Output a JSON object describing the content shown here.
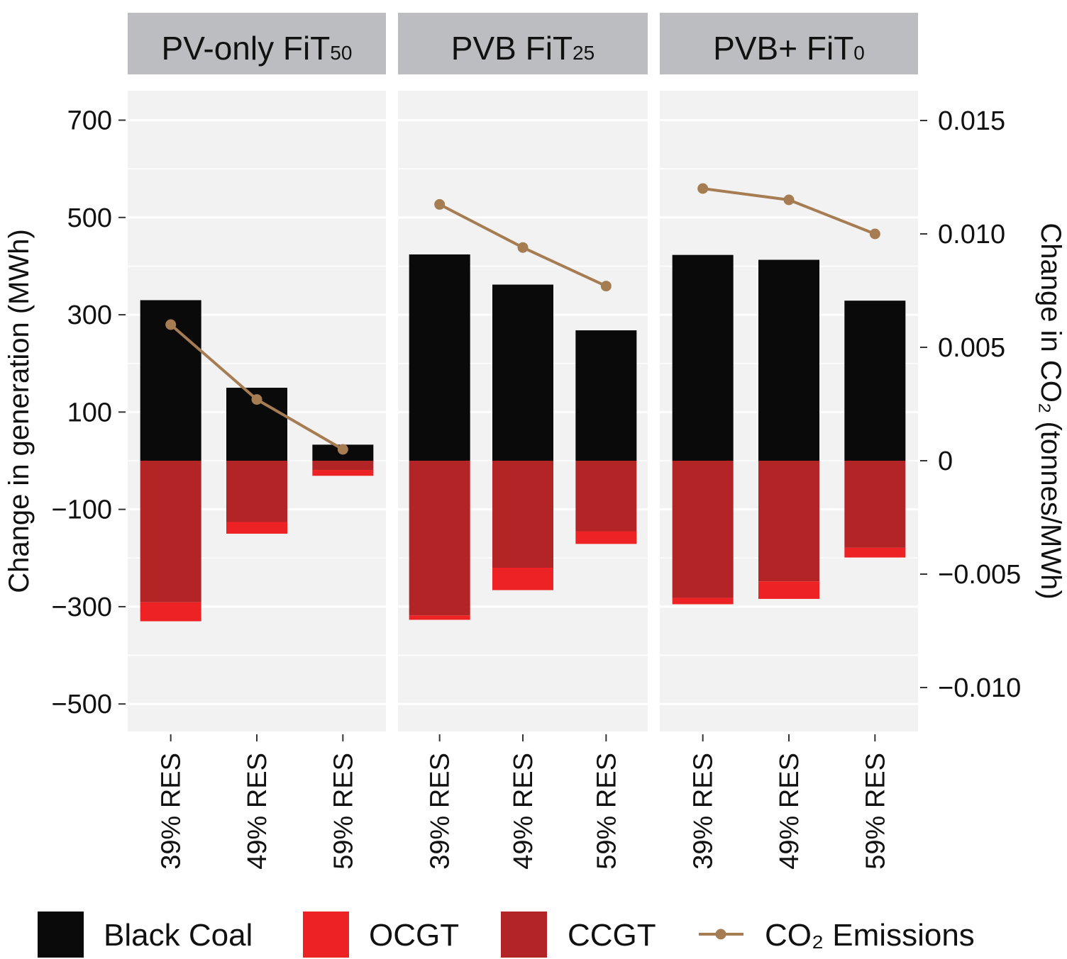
{
  "chart_data": {
    "type": "bar",
    "stacked": true,
    "facets": [
      {
        "title": "PV-only FiT",
        "subscript": "50"
      },
      {
        "title": "PVB FiT",
        "subscript": "25"
      },
      {
        "title": "PVB+ FiT",
        "subscript": "0"
      }
    ],
    "categories": [
      "39% RES",
      "49% RES",
      "59% RES"
    ],
    "series": [
      {
        "name": "Black Coal",
        "color": "#0a0a0a",
        "values": [
          [
            330,
            150,
            33
          ],
          [
            424,
            362,
            268
          ],
          [
            423,
            413,
            329
          ]
        ]
      },
      {
        "name": "OCGT",
        "color": "#ed2224",
        "values": [
          [
            -39,
            -24,
            -12
          ],
          [
            -9,
            -46,
            -26
          ],
          [
            -13,
            -36,
            -20
          ]
        ]
      },
      {
        "name": "CCGT",
        "color": "#b22426",
        "values": [
          [
            -291,
            -126,
            -19
          ],
          [
            -318,
            -220,
            -145
          ],
          [
            -282,
            -248,
            -179
          ]
        ]
      },
      {
        "name": "CO₂ Emissions",
        "color": "#a67c52",
        "axis": "right",
        "type": "line",
        "values": [
          [
            0.006,
            0.0027,
            0.0005
          ],
          [
            0.0113,
            0.0094,
            0.0077
          ],
          [
            0.012,
            0.0115,
            0.01
          ]
        ]
      }
    ],
    "ylabel": "Change in generation (MWh)",
    "ylabel_right": "Change in CO₂ (tonnes/MWh)",
    "ylim": [
      -560,
      760
    ],
    "yticks": [
      700,
      500,
      300,
      100,
      -100,
      -300,
      -500
    ],
    "yticks_text": [
      "700",
      "500",
      "300",
      "100",
      "−100",
      "−300",
      "−500"
    ],
    "ylim_right": [
      -0.0121,
      0.0162
    ],
    "yticks_right": [
      0.015,
      0.01,
      0.005,
      0,
      -0.005,
      -0.01
    ],
    "yticks_right_text": [
      "0.015",
      "0.010",
      "0.005",
      "0",
      "−0.005",
      "−0.010"
    ],
    "grid": true,
    "legend_position": "bottom"
  },
  "colors": {
    "panel_bg": "#f2f2f2",
    "strip_bg": "#bcbdc0",
    "grid": "#ffffff"
  }
}
